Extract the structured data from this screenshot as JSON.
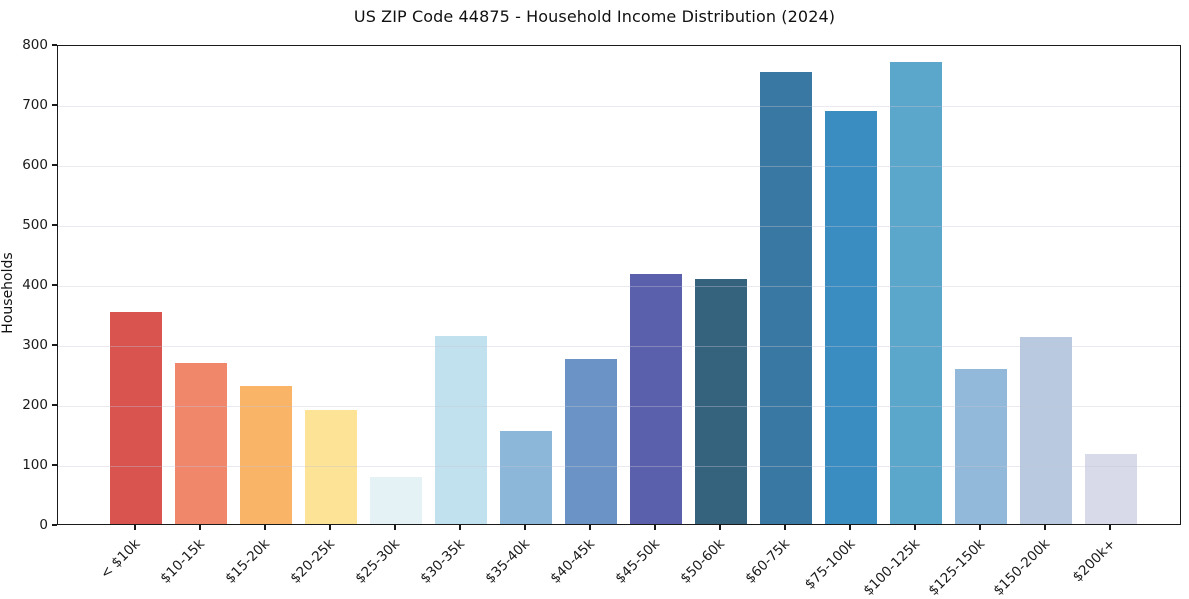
{
  "chart_data": {
    "type": "bar",
    "title": "US ZIP Code 44875 - Household Income Distribution (2024)",
    "xlabel": "",
    "ylabel": "Households",
    "categories": [
      "< $10k",
      "$10-15k",
      "$15-20k",
      "$20-25k",
      "$25-30k",
      "$30-35k",
      "$35-40k",
      "$40-45k",
      "$45-50k",
      "$50-60k",
      "$60-75k",
      "$75-100k",
      "$100-125k",
      "$125-150k",
      "$150-200k",
      "$200k+"
    ],
    "values": [
      353,
      268,
      230,
      190,
      78,
      313,
      155,
      275,
      417,
      409,
      753,
      689,
      770,
      259,
      312,
      117
    ],
    "bar_colors": [
      "#d9534f",
      "#f0876a",
      "#fab468",
      "#fde396",
      "#e4f1f5",
      "#c0e1ed",
      "#8cb7d9",
      "#6b93c6",
      "#5b60ad",
      "#35637e",
      "#3878a2",
      "#398dc1",
      "#5ba7cb",
      "#93b9da",
      "#b9c9e0",
      "#d8dae9"
    ],
    "ylim": [
      0,
      800
    ],
    "yticks": [
      0,
      100,
      200,
      300,
      400,
      500,
      600,
      700,
      800
    ],
    "xtick_rotation_deg": 45,
    "grid": "horizontal, drawn above bars",
    "legend": "none",
    "colors": {
      "background": "#ffffff",
      "spine": "#1a1a1a",
      "gridline": "#e7e6ee",
      "text": "#1a1a1a"
    }
  }
}
